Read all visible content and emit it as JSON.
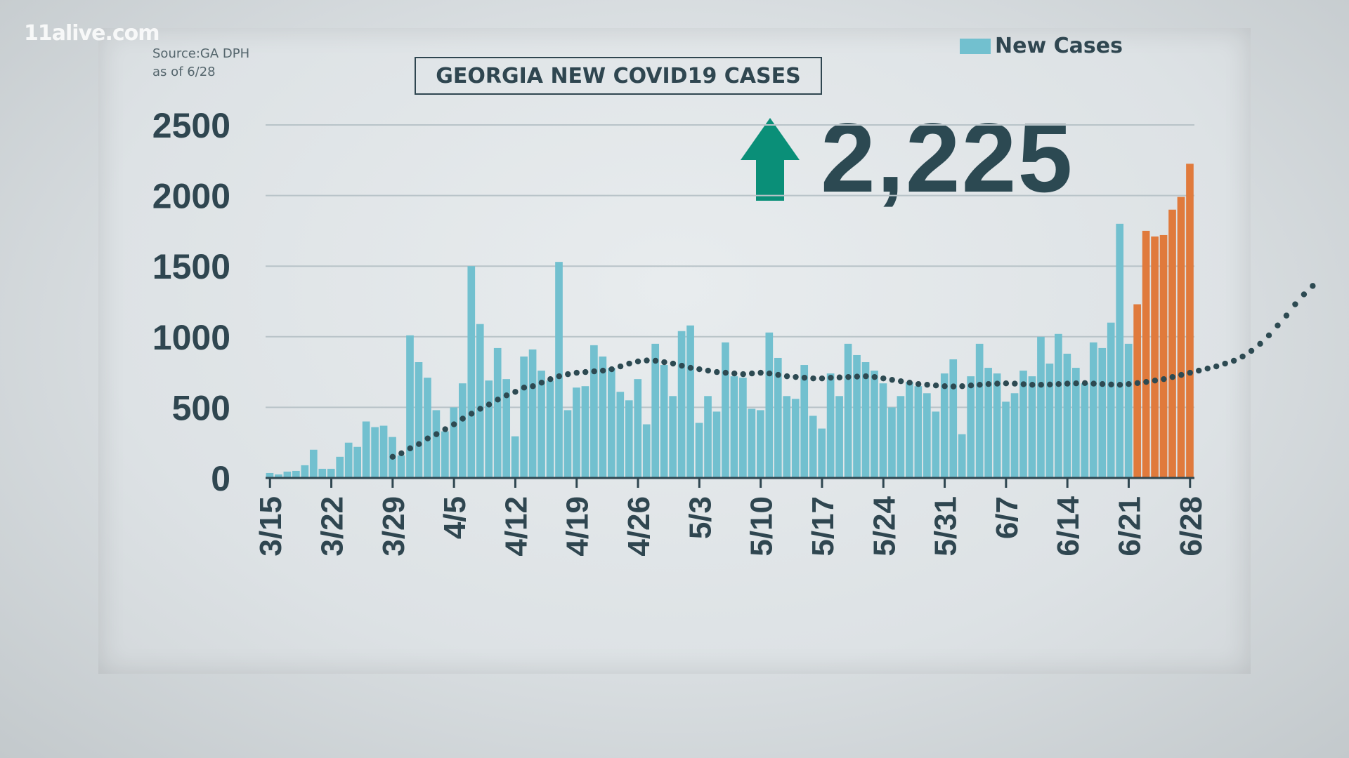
{
  "logo": "11alive.com",
  "source": {
    "line1": "Source:GA DPH",
    "line2": "as of 6/28"
  },
  "title": "GEORGIA NEW COVID19 CASES",
  "legend": {
    "label": "New Cases",
    "color": "#72c0cf"
  },
  "highlight": {
    "value": "2,225",
    "arrow_icon": "up-arrow-icon",
    "arrow_color": "#0a8f78"
  },
  "colors": {
    "bar": "#72c0cf",
    "bar_recent": "#e07a3c",
    "trend": "#2d4a52",
    "grid": "#b8c3c8",
    "axis": "#2f4650"
  },
  "chart_data": {
    "type": "bar",
    "title": "GEORGIA NEW COVID19 CASES",
    "ylim": [
      0,
      2500
    ],
    "yticks": [
      0,
      500,
      1000,
      1500,
      2000,
      2500
    ],
    "x_start": "3/15",
    "x_end": "6/28",
    "xtick_labels": [
      "3/15",
      "3/22",
      "3/29",
      "4/5",
      "4/12",
      "4/19",
      "4/26",
      "5/3",
      "5/10",
      "5/17",
      "5/24",
      "5/31",
      "6/7",
      "6/14",
      "6/21",
      "6/28"
    ],
    "grid": true,
    "legend_position": "top-right",
    "series": [
      {
        "name": "New Cases",
        "values": [
          35,
          25,
          45,
          50,
          90,
          200,
          65,
          65,
          150,
          250,
          220,
          400,
          360,
          370,
          290,
          160,
          1010,
          820,
          710,
          480,
          330,
          500,
          670,
          1500,
          1090,
          690,
          920,
          700,
          295,
          860,
          910,
          760,
          690,
          1530,
          480,
          640,
          650,
          940,
          860,
          780,
          610,
          550,
          700,
          380,
          950,
          800,
          580,
          1040,
          1080,
          390,
          580,
          470,
          960,
          720,
          710,
          490,
          480,
          1030,
          850,
          580,
          560,
          800,
          440,
          350,
          740,
          580,
          950,
          870,
          820,
          760,
          670,
          500,
          580,
          680,
          650,
          600,
          470,
          740,
          840,
          310,
          720,
          950,
          780,
          740,
          540,
          600,
          760,
          720,
          1000,
          810,
          1020,
          880,
          780,
          670,
          960,
          920,
          1100,
          1800,
          950,
          1230,
          1750,
          1710,
          1720,
          1900,
          1990,
          2225
        ]
      }
    ],
    "recent_start_index": 99,
    "trend": [
      150,
      175,
      210,
      240,
      280,
      310,
      345,
      380,
      420,
      455,
      490,
      520,
      555,
      585,
      610,
      640,
      650,
      675,
      700,
      720,
      735,
      745,
      750,
      755,
      760,
      770,
      790,
      810,
      825,
      832,
      830,
      820,
      810,
      795,
      780,
      770,
      760,
      750,
      745,
      740,
      735,
      740,
      745,
      740,
      730,
      720,
      715,
      710,
      705,
      705,
      710,
      712,
      715,
      718,
      720,
      715,
      705,
      695,
      685,
      675,
      665,
      660,
      655,
      650,
      648,
      650,
      655,
      660,
      665,
      668,
      670,
      668,
      664,
      660,
      660,
      662,
      665,
      668,
      670,
      672,
      668,
      665,
      662,
      660,
      665,
      672,
      680,
      690,
      700,
      715,
      730,
      745,
      760,
      775,
      790,
      810,
      830,
      860,
      900,
      950,
      1010,
      1080,
      1150,
      1230,
      1300,
      1360
    ]
  }
}
